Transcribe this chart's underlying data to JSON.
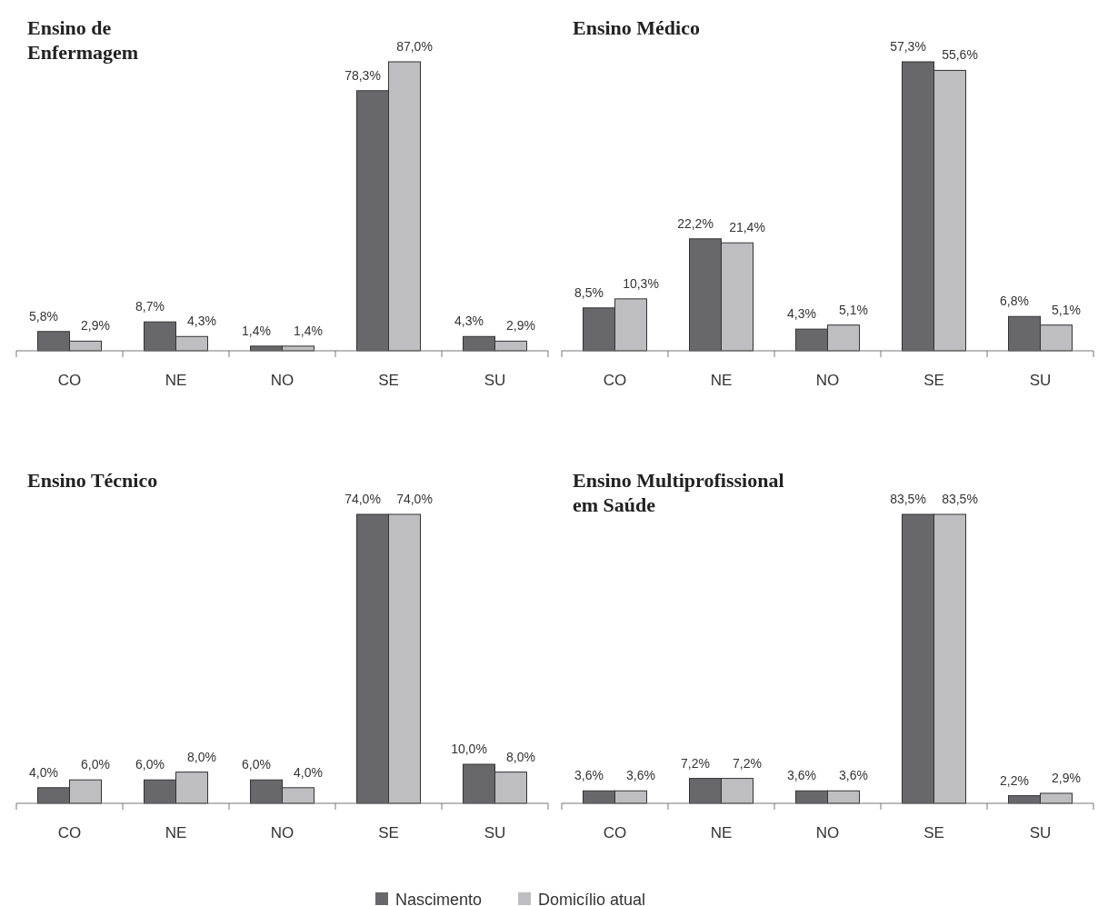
{
  "chart_data": [
    {
      "type": "bar",
      "title": "Ensino de\nEnfermagem",
      "categories": [
        "CO",
        "NE",
        "NO",
        "SE",
        "SU"
      ],
      "legend": "bottom",
      "series": [
        {
          "name": "Nascimento",
          "color": "#68686a",
          "values": [
            5.8,
            8.7,
            1.4,
            78.3,
            4.3
          ],
          "value_labels": [
            "5,8%",
            "8,7%",
            "1,4%",
            "78,3%",
            "4,3%"
          ]
        },
        {
          "name": "Domicílio atual",
          "color": "#bebec0",
          "values": [
            2.9,
            4.3,
            1.4,
            87.0,
            2.9
          ],
          "value_labels": [
            "2,9%",
            "4,3%",
            "1,4%",
            "87,0%",
            "2,9%"
          ]
        }
      ]
    },
    {
      "type": "bar",
      "title": "Ensino Médico",
      "categories": [
        "CO",
        "NE",
        "NO",
        "SE",
        "SU"
      ],
      "legend": "bottom",
      "series": [
        {
          "name": "Nascimento",
          "color": "#68686a",
          "values": [
            8.5,
            22.2,
            4.3,
            57.3,
            6.8
          ],
          "value_labels": [
            "8,5%",
            "22,2%",
            "4,3%",
            "57,3%",
            "6,8%"
          ]
        },
        {
          "name": "Domicílio atual",
          "color": "#bebec0",
          "values": [
            10.3,
            21.4,
            5.1,
            55.6,
            5.1
          ],
          "value_labels": [
            "10,3%",
            "21,4%",
            "5,1%",
            "55,6%",
            "5,1%"
          ]
        }
      ]
    },
    {
      "type": "bar",
      "title": "Ensino Técnico",
      "categories": [
        "CO",
        "NE",
        "NO",
        "SE",
        "SU"
      ],
      "legend": "bottom",
      "series": [
        {
          "name": "Nascimento",
          "color": "#68686a",
          "values": [
            4.0,
            6.0,
            6.0,
            74.0,
            10.0
          ],
          "value_labels": [
            "4,0%",
            "6,0%",
            "6,0%",
            "74,0%",
            "10,0%"
          ]
        },
        {
          "name": "Domicílio atual",
          "color": "#bebec0",
          "values": [
            6.0,
            8.0,
            4.0,
            74.0,
            8.0
          ],
          "value_labels": [
            "6,0%",
            "8,0%",
            "4,0%",
            "74,0%",
            "8,0%"
          ]
        }
      ]
    },
    {
      "type": "bar",
      "title": "Ensino Multiprofissional\nem Saúde",
      "categories": [
        "CO",
        "NE",
        "NO",
        "SE",
        "SU"
      ],
      "legend": "bottom",
      "series": [
        {
          "name": "Nascimento",
          "color": "#68686a",
          "values": [
            3.6,
            7.2,
            3.6,
            83.5,
            2.2
          ],
          "value_labels": [
            "3,6%",
            "7,2%",
            "3,6%",
            "83,5%",
            "2,2%"
          ]
        },
        {
          "name": "Domicílio atual",
          "color": "#bebec0",
          "values": [
            3.6,
            7.2,
            3.6,
            83.5,
            2.9
          ],
          "value_labels": [
            "3,6%",
            "7,2%",
            "3,6%",
            "83,5%",
            "2,9%"
          ]
        }
      ]
    }
  ]
}
